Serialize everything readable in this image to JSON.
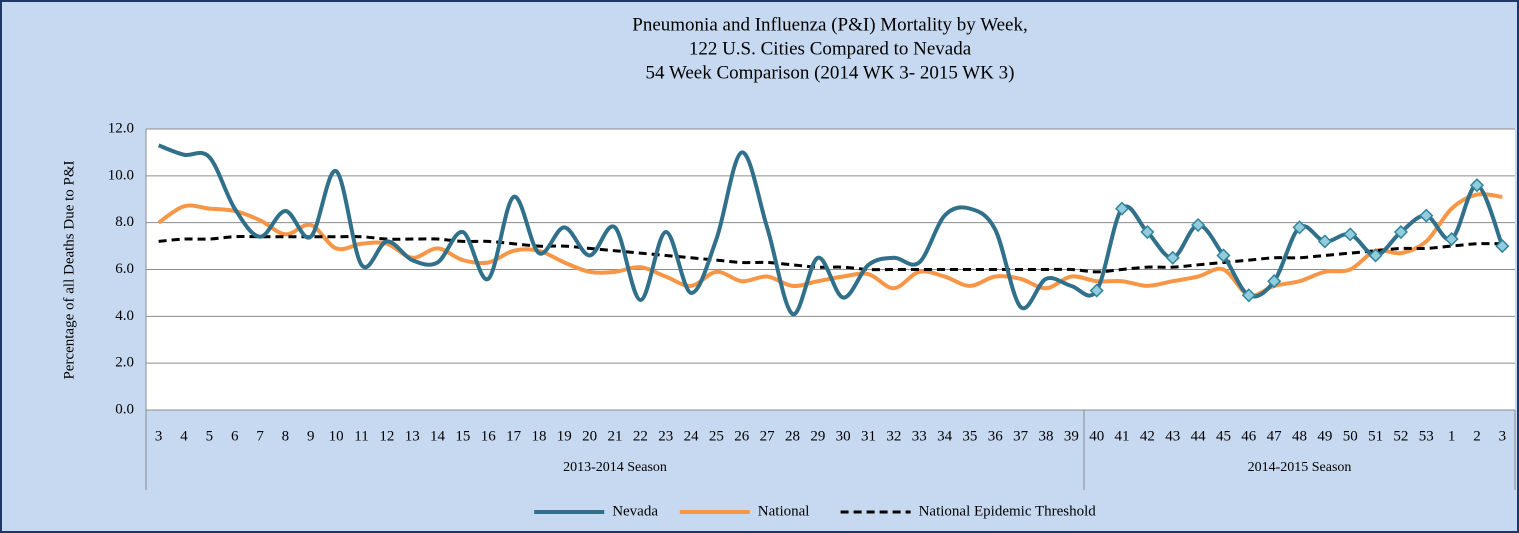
{
  "chart_data": {
    "type": "line",
    "title": [
      "Pneumonia and Influenza (P&I) Mortality by Week,",
      "122 U.S. Cities Compared to Nevada",
      "54 Week Comparison (2014 WK 3- 2015 WK 3)"
    ],
    "y_label": "Percentage of all Deaths Due to P&I",
    "category_groups": [
      {
        "name": "2013-2014 Season",
        "categories": [
          "3",
          "4",
          "5",
          "6",
          "7",
          "8",
          "9",
          "10",
          "11",
          "12",
          "13",
          "14",
          "15",
          "16",
          "17",
          "18",
          "19",
          "20",
          "21",
          "22",
          "23",
          "24",
          "25",
          "26",
          "27",
          "28",
          "29",
          "30",
          "31",
          "32",
          "33",
          "34",
          "35",
          "36",
          "37",
          "38",
          "39"
        ]
      },
      {
        "name": "2014-2015 Season",
        "categories": [
          "40",
          "41",
          "42",
          "43",
          "44",
          "45",
          "46",
          "47",
          "48",
          "49",
          "50",
          "51",
          "52",
          "53",
          "1",
          "2",
          "3"
        ]
      }
    ],
    "ylim": [
      0,
      12
    ],
    "yticks": [
      {
        "value": 0,
        "label": "0.0"
      },
      {
        "value": 2,
        "label": "2.0"
      },
      {
        "value": 4,
        "label": "4.0"
      },
      {
        "value": 6,
        "label": "6.0"
      },
      {
        "value": 8,
        "label": "8.0"
      },
      {
        "value": 10,
        "label": "10.0"
      },
      {
        "value": 12,
        "label": "12.0"
      }
    ],
    "grid": true,
    "legend": "bottom",
    "series": [
      {
        "name": "Nevada",
        "color": "#31708a",
        "dash": false,
        "values": [
          11.3,
          10.9,
          10.8,
          8.6,
          7.4,
          8.5,
          7.4,
          10.2,
          6.2,
          7.2,
          6.4,
          6.3,
          7.6,
          5.6,
          9.1,
          6.7,
          7.8,
          6.6,
          7.8,
          4.7,
          7.6,
          5.0,
          7.3,
          11.0,
          7.8,
          4.1,
          6.5,
          4.8,
          6.2,
          6.5,
          6.3,
          8.3,
          8.6,
          7.7,
          4.4,
          5.6,
          5.3,
          5.1,
          8.6,
          7.6,
          6.5,
          7.9,
          6.6,
          4.9,
          5.5,
          7.8,
          7.2,
          7.5,
          6.6,
          7.6,
          8.3,
          7.3,
          9.6,
          7.0
        ]
      },
      {
        "name": "National",
        "color": "#f79646",
        "dash": false,
        "values": [
          8.0,
          8.7,
          8.6,
          8.5,
          8.1,
          7.5,
          7.9,
          6.9,
          7.1,
          7.1,
          6.5,
          6.9,
          6.4,
          6.3,
          6.8,
          6.8,
          6.3,
          5.9,
          5.9,
          6.1,
          5.7,
          5.3,
          5.9,
          5.5,
          5.7,
          5.3,
          5.5,
          5.7,
          5.8,
          5.2,
          5.9,
          5.7,
          5.3,
          5.7,
          5.6,
          5.2,
          5.7,
          5.5,
          5.5,
          5.3,
          5.5,
          5.7,
          6.0,
          4.9,
          5.3,
          5.5,
          5.9,
          6.0,
          6.8,
          6.7,
          7.2,
          8.6,
          9.2,
          9.1
        ]
      },
      {
        "name": "National Epidemic Threshold",
        "color": "#000000",
        "dash": true,
        "values": [
          7.2,
          7.3,
          7.3,
          7.4,
          7.4,
          7.4,
          7.4,
          7.4,
          7.4,
          7.3,
          7.3,
          7.3,
          7.2,
          7.2,
          7.1,
          7.0,
          7.0,
          6.9,
          6.8,
          6.7,
          6.6,
          6.5,
          6.4,
          6.3,
          6.3,
          6.2,
          6.1,
          6.1,
          6.0,
          6.0,
          6.0,
          6.0,
          6.0,
          6.0,
          6.0,
          6.0,
          6.0,
          5.9,
          6.0,
          6.1,
          6.1,
          6.2,
          6.3,
          6.4,
          6.5,
          6.5,
          6.6,
          6.7,
          6.8,
          6.9,
          6.9,
          7.0,
          7.1,
          7.1
        ]
      }
    ]
  }
}
